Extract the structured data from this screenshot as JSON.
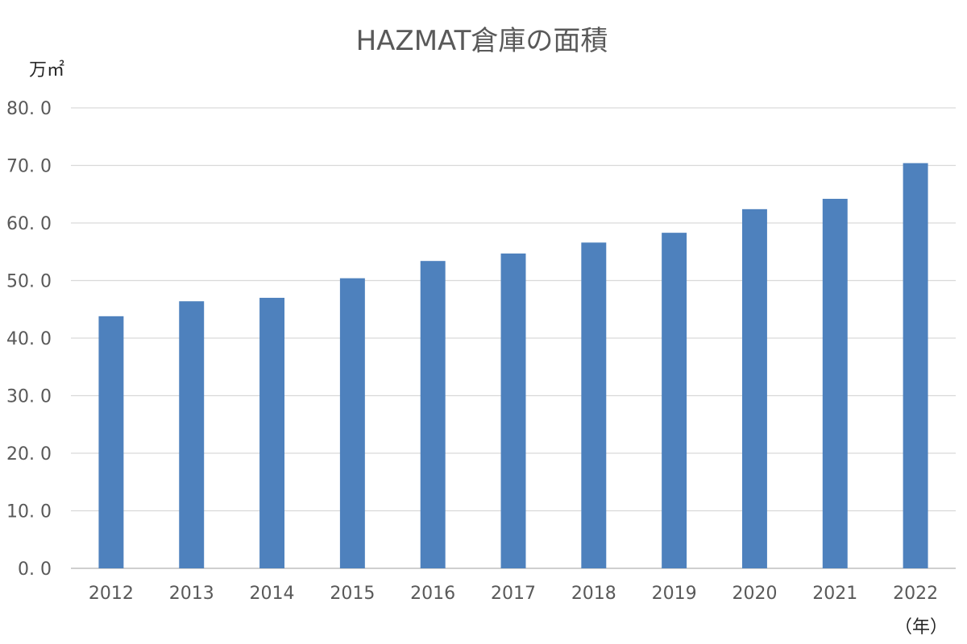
{
  "chart_data": {
    "type": "bar",
    "title": "HAZMAT倉庫の面積",
    "ylabel": "万㎡",
    "xlabel": "（年）",
    "categories": [
      "2012",
      "2013",
      "2014",
      "2015",
      "2016",
      "2017",
      "2018",
      "2019",
      "2020",
      "2021",
      "2022"
    ],
    "values": [
      43.8,
      46.4,
      47.0,
      50.4,
      53.4,
      54.7,
      56.6,
      58.3,
      62.4,
      64.2,
      70.4
    ],
    "ylim": [
      0,
      80
    ],
    "yticks": [
      0,
      10,
      20,
      30,
      40,
      50,
      60,
      70,
      80
    ],
    "ytick_labels": [
      "0. 0",
      "10. 0",
      "20. 0",
      "30. 0",
      "40. 0",
      "50. 0",
      "60. 0",
      "70. 0",
      "80. 0"
    ],
    "grid": true,
    "legend": "none",
    "colors": {
      "bar": "#4e81bd",
      "grid": "#d9d9d9",
      "text": "#595959"
    }
  }
}
